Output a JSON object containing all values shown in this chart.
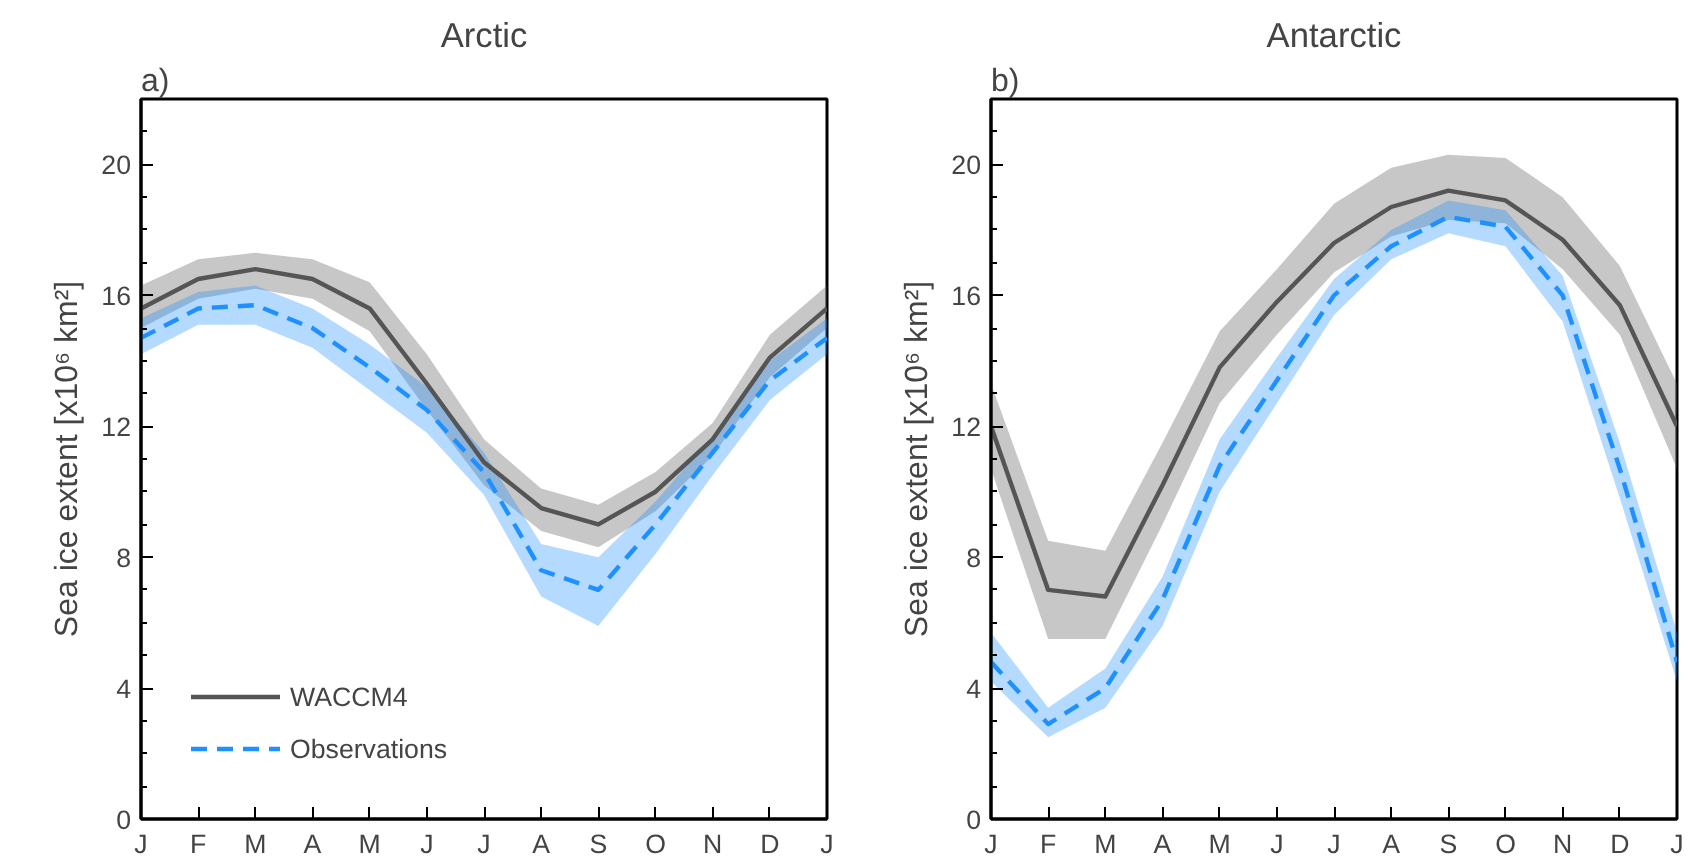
{
  "chart_data": [
    {
      "type": "line",
      "title": "Arctic",
      "ylabel": "Sea ice extent [x10⁶ km²]",
      "annotations": [
        "a)"
      ],
      "categories": [
        "J",
        "F",
        "M",
        "A",
        "M",
        "J",
        "J",
        "A",
        "S",
        "O",
        "N",
        "D",
        "J"
      ],
      "ylim": [
        0,
        22
      ],
      "yticks": [
        0,
        4,
        8,
        12,
        16,
        20
      ],
      "grid": false,
      "legend": "bottom left",
      "series": [
        {
          "name": "WACCM4",
          "color": "#555555",
          "line_style": "solid",
          "values": [
            15.6,
            16.5,
            16.8,
            16.5,
            15.6,
            13.3,
            10.9,
            9.5,
            9.0,
            10.0,
            11.6,
            14.1,
            15.6
          ],
          "lower": [
            15.0,
            15.9,
            16.2,
            15.9,
            14.9,
            12.5,
            10.2,
            8.8,
            8.3,
            9.4,
            11.1,
            13.5,
            15.0
          ],
          "upper": [
            16.3,
            17.1,
            17.3,
            17.1,
            16.4,
            14.2,
            11.6,
            10.1,
            9.6,
            10.6,
            12.1,
            14.8,
            16.3
          ]
        },
        {
          "name": "Observations",
          "color": "#1e90ff",
          "line_style": "dashed",
          "values": [
            14.7,
            15.6,
            15.7,
            15.0,
            13.8,
            12.5,
            10.6,
            7.6,
            7.0,
            9.0,
            11.2,
            13.4,
            14.7
          ],
          "lower": [
            14.2,
            15.1,
            15.1,
            14.4,
            13.1,
            11.8,
            9.9,
            6.8,
            5.9,
            8.1,
            10.5,
            12.8,
            14.2
          ],
          "upper": [
            15.3,
            16.1,
            16.3,
            15.6,
            14.5,
            13.2,
            11.2,
            8.4,
            8.0,
            9.7,
            11.7,
            14.0,
            15.3
          ]
        }
      ]
    },
    {
      "type": "line",
      "title": "Antarctic",
      "ylabel": "Sea ice extent [x10⁶ km²]",
      "annotations": [
        "b)"
      ],
      "categories": [
        "J",
        "F",
        "M",
        "A",
        "M",
        "J",
        "J",
        "A",
        "S",
        "O",
        "N",
        "D",
        "J"
      ],
      "ylim": [
        0,
        22
      ],
      "yticks": [
        0,
        4,
        8,
        12,
        16,
        20
      ],
      "grid": false,
      "series": [
        {
          "color": "#555555",
          "line_style": "solid",
          "values": [
            12.0,
            7.0,
            6.8,
            10.2,
            13.8,
            15.8,
            17.6,
            18.7,
            19.2,
            18.9,
            17.7,
            15.7,
            12.0
          ],
          "lower": [
            10.7,
            5.5,
            5.5,
            9.0,
            12.7,
            14.8,
            16.7,
            17.8,
            18.3,
            18.2,
            16.8,
            14.8,
            10.7
          ],
          "upper": [
            13.3,
            8.5,
            8.2,
            11.5,
            14.9,
            16.8,
            18.8,
            19.9,
            20.3,
            20.2,
            19.0,
            16.9,
            13.3
          ]
        },
        {
          "color": "#1e90ff",
          "line_style": "dashed",
          "values": [
            4.8,
            2.9,
            4.0,
            6.7,
            10.8,
            13.4,
            16.0,
            17.5,
            18.4,
            18.1,
            16.0,
            10.7,
            4.8
          ],
          "lower": [
            4.2,
            2.5,
            3.4,
            5.9,
            10.0,
            12.7,
            15.4,
            17.1,
            17.9,
            17.5,
            15.2,
            9.8,
            4.2
          ],
          "upper": [
            5.7,
            3.4,
            4.6,
            7.4,
            11.6,
            14.1,
            16.5,
            18.0,
            18.9,
            18.6,
            16.6,
            11.5,
            5.7
          ]
        }
      ]
    }
  ]
}
